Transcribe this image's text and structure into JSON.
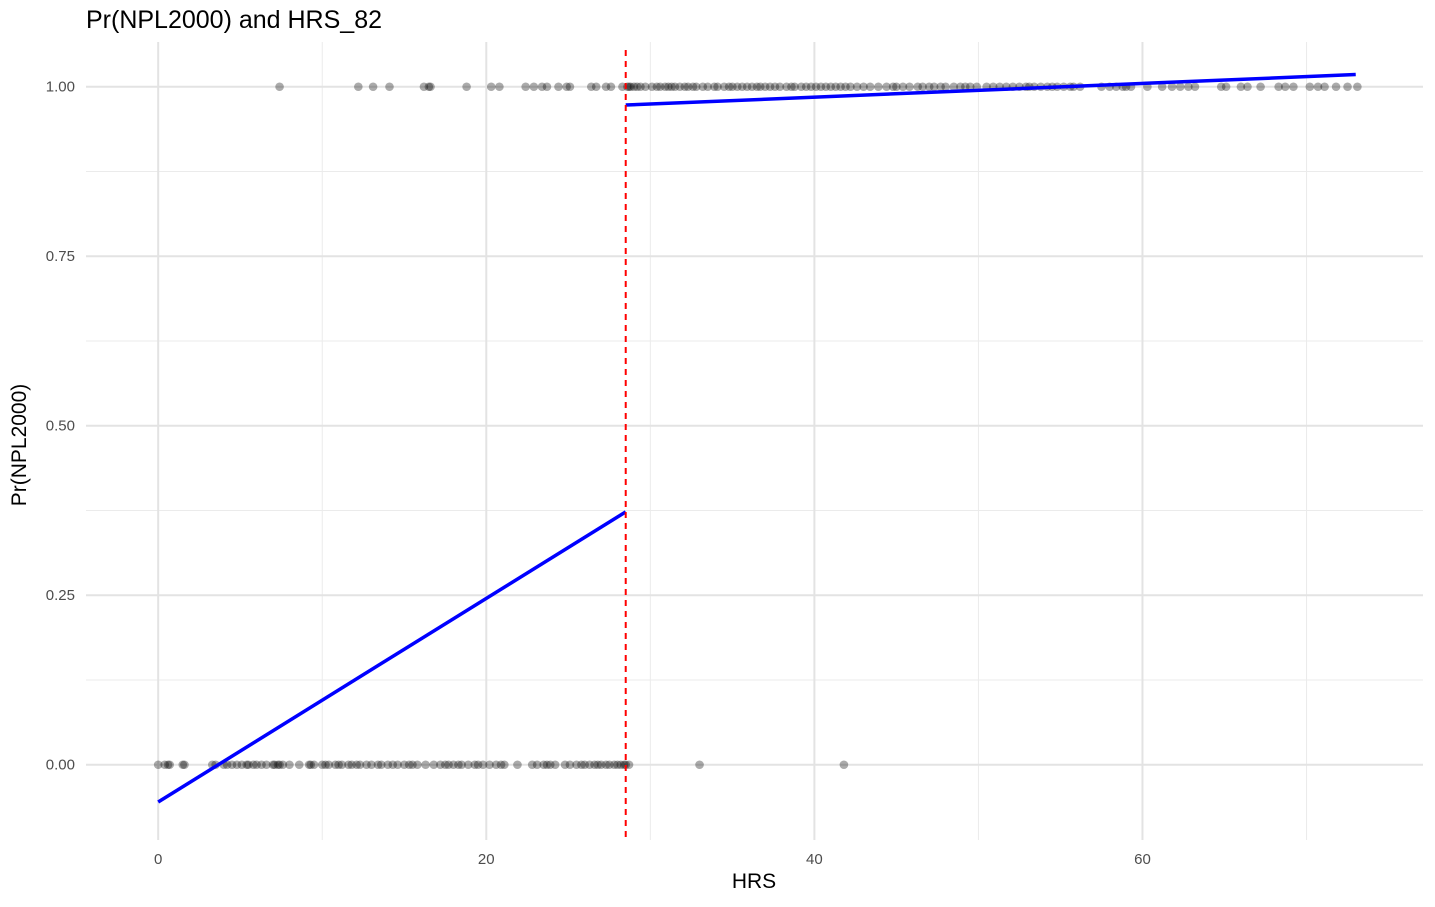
{
  "chart_data": {
    "type": "scatter",
    "title": "Pr(NPL2000) and HRS_82",
    "xlabel": "HRS",
    "ylabel": "Pr(NPL2000)",
    "xlim": [
      -4.4,
      77.1
    ],
    "ylim": [
      -0.111,
      1.066
    ],
    "x_ticks": [
      0,
      20,
      40,
      60
    ],
    "x_tick_labels": [
      "0",
      "20",
      "40",
      "60"
    ],
    "y_ticks": [
      0.0,
      0.25,
      0.5,
      0.75,
      1.0
    ],
    "y_tick_labels": [
      "0.00",
      "0.25",
      "0.50",
      "0.75",
      "1.00"
    ],
    "grid": true,
    "cutoff": {
      "x": 28.5,
      "style": "dashed",
      "color": "#ff0000"
    },
    "point_color": "#000000",
    "point_opacity": 0.33,
    "fit_color": "#0000ff",
    "fit_lines": [
      {
        "x": [
          0,
          28.5
        ],
        "y": [
          -0.055,
          0.373
        ]
      },
      {
        "x": [
          28.5,
          73.0
        ],
        "y": [
          0.973,
          1.018
        ]
      }
    ],
    "points_y0_x": [
      0,
      0.4,
      0.6,
      0.7,
      1.5,
      1.6,
      3.3,
      3.5,
      4.0,
      4.2,
      4.5,
      4.8,
      5.1,
      5.4,
      5.5,
      5.8,
      6.0,
      6.3,
      6.6,
      7.0,
      7.1,
      7.3,
      7.4,
      7.6,
      8.0,
      8.6,
      9.2,
      9.3,
      9.5,
      10.0,
      10.2,
      10.4,
      10.8,
      11.0,
      11.2,
      11.6,
      11.8,
      12.1,
      12.3,
      12.7,
      13.0,
      13.4,
      13.6,
      14.0,
      14.3,
      14.6,
      15.0,
      15.3,
      15.5,
      15.8,
      16.3,
      16.8,
      17.2,
      17.5,
      17.7,
      18.0,
      18.3,
      18.5,
      18.9,
      19.3,
      19.5,
      19.8,
      20.2,
      20.6,
      20.9,
      21.1,
      21.9,
      22.8,
      23.1,
      23.5,
      23.7,
      23.9,
      24.2,
      24.8,
      25.1,
      25.5,
      25.8,
      26.0,
      26.3,
      26.6,
      26.8,
      27.0,
      27.3,
      27.5,
      27.8,
      28.0,
      28.2,
      28.4,
      28.5,
      28.7,
      33.0,
      41.8
    ],
    "points_y1_x": [
      7.4,
      12.2,
      13.1,
      14.1,
      16.2,
      16.5,
      16.6,
      18.8,
      20.3,
      20.8,
      22.4,
      22.9,
      23.4,
      23.7,
      24.4,
      24.9,
      25.1,
      26.4,
      26.7,
      27.3,
      27.6,
      28.3,
      28.6,
      28.7,
      28.8,
      29.0,
      29.2,
      29.4,
      29.7,
      30.1,
      30.4,
      30.6,
      30.9,
      31.1,
      31.3,
      31.5,
      31.8,
      32.1,
      32.3,
      32.6,
      32.8,
      33.2,
      33.5,
      33.9,
      34.1,
      34.5,
      34.8,
      35.0,
      35.3,
      35.6,
      35.9,
      36.2,
      36.5,
      36.7,
      37.0,
      37.3,
      37.6,
      37.9,
      38.3,
      38.6,
      38.8,
      39.2,
      39.5,
      39.8,
      40.1,
      40.4,
      40.7,
      41.0,
      41.3,
      41.6,
      41.9,
      42.2,
      42.6,
      43.0,
      43.4,
      43.9,
      44.4,
      44.8,
      45.0,
      45.4,
      45.8,
      46.3,
      46.6,
      47.0,
      47.3,
      47.7,
      48.0,
      48.5,
      48.9,
      49.2,
      49.5,
      49.9,
      50.5,
      50.9,
      51.3,
      51.7,
      52.1,
      52.5,
      52.9,
      53.1,
      53.4,
      53.8,
      54.2,
      54.5,
      54.8,
      55.2,
      55.6,
      55.8,
      56.2,
      57.5,
      58.0,
      58.4,
      58.8,
      59.0,
      59.3,
      60.3,
      61.2,
      61.8,
      62.3,
      62.8,
      63.2,
      64.8,
      65.1,
      66.0,
      66.4,
      67.2,
      68.3,
      68.7,
      69.2,
      70.2,
      70.7,
      71.1,
      71.8,
      72.5,
      73.1
    ]
  }
}
